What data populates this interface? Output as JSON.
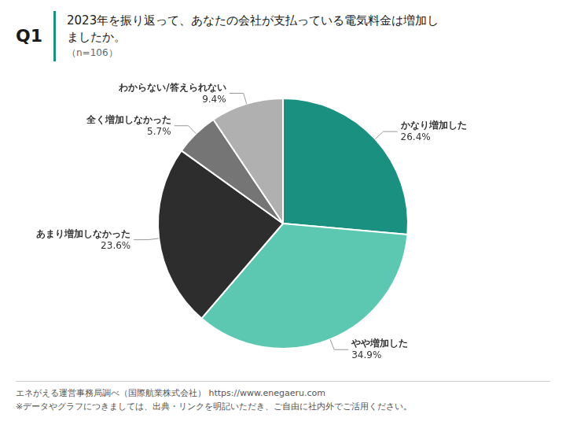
{
  "chart_data": {
    "type": "pie",
    "title": [
      "2023年を振り返って、あなたの会社が支払っている電気料金は増加し",
      "ましたか。"
    ],
    "subtitle": "（n=106）",
    "categories": [
      "かなり増加した",
      "やや増加した",
      "あまり増加しなかった",
      "全く増加しなかった",
      "わからない/答えられない"
    ],
    "values": [
      26.4,
      34.9,
      23.6,
      5.7,
      9.4
    ],
    "value_labels": [
      "26.4%",
      "34.9%",
      "23.6%",
      "5.7%",
      "9.4%"
    ],
    "colors": [
      "#1a9080",
      "#5dc8b2",
      "#2d2d2d",
      "#757575",
      "#b0b0b0"
    ],
    "data_labels": true,
    "annotations": [
      "Q1",
      "エネがえる運営事務局調べ（国際航業株式会社）  https://www.enegaeru.com",
      "※データやグラフにつきましては、出典・リンクを明記いただき、ご自由に社内外でご活用ください。"
    ]
  }
}
